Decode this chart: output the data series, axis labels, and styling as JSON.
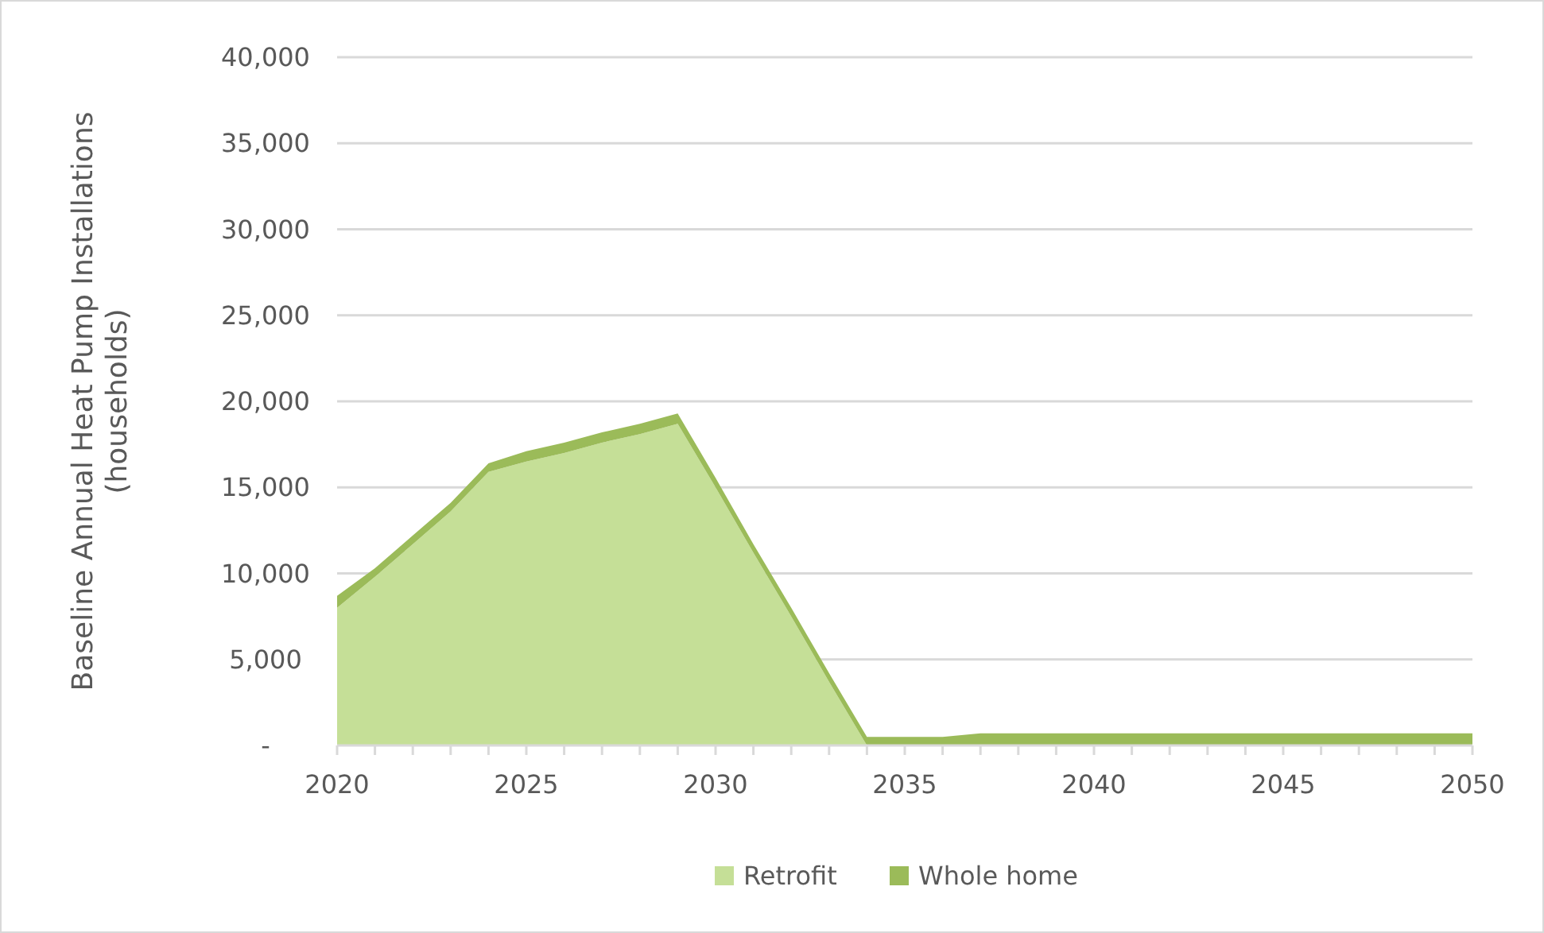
{
  "chart_data": {
    "type": "area",
    "stacked": true,
    "ylabel": "Baseline Annual Heat Pump Installations (households)",
    "x": [
      2020,
      2021,
      2022,
      2023,
      2024,
      2025,
      2026,
      2027,
      2028,
      2029,
      2030,
      2031,
      2032,
      2033,
      2034,
      2035,
      2036,
      2037,
      2038,
      2039,
      2040,
      2041,
      2042,
      2043,
      2044,
      2045,
      2046,
      2047,
      2048,
      2049,
      2050
    ],
    "series": [
      {
        "name": "Retrofit",
        "color": "#c5df97",
        "values": [
          8000,
          9800,
          11700,
          13600,
          15900,
          16500,
          17000,
          17600,
          18100,
          18700,
          15000,
          11200,
          7500,
          3700,
          0,
          0,
          0,
          0,
          0,
          0,
          0,
          0,
          0,
          0,
          0,
          0,
          0,
          0,
          0,
          0,
          0
        ]
      },
      {
        "name": "Whole home",
        "color": "#9bbb59",
        "values": [
          700,
          500,
          500,
          500,
          500,
          600,
          600,
          600,
          600,
          600,
          550,
          500,
          500,
          500,
          500,
          500,
          500,
          700,
          700,
          700,
          700,
          700,
          700,
          700,
          700,
          700,
          700,
          700,
          700,
          700,
          700
        ]
      }
    ],
    "xlim": [
      2020,
      2050
    ],
    "xticks": [
      2020,
      2025,
      2030,
      2035,
      2040,
      2045,
      2050
    ],
    "ylim": [
      0,
      40000
    ],
    "yticks": [
      {
        "value": 0,
        "label": "-"
      },
      {
        "value": 5000,
        "label": "5,000"
      },
      {
        "value": 10000,
        "label": "10,000"
      },
      {
        "value": 15000,
        "label": "15,000"
      },
      {
        "value": 20000,
        "label": "20,000"
      },
      {
        "value": 25000,
        "label": "25,000"
      },
      {
        "value": 30000,
        "label": "30,000"
      },
      {
        "value": 35000,
        "label": "35,000"
      },
      {
        "value": 40000,
        "label": "40,000"
      }
    ],
    "grid": "y",
    "legend": "bottom"
  }
}
